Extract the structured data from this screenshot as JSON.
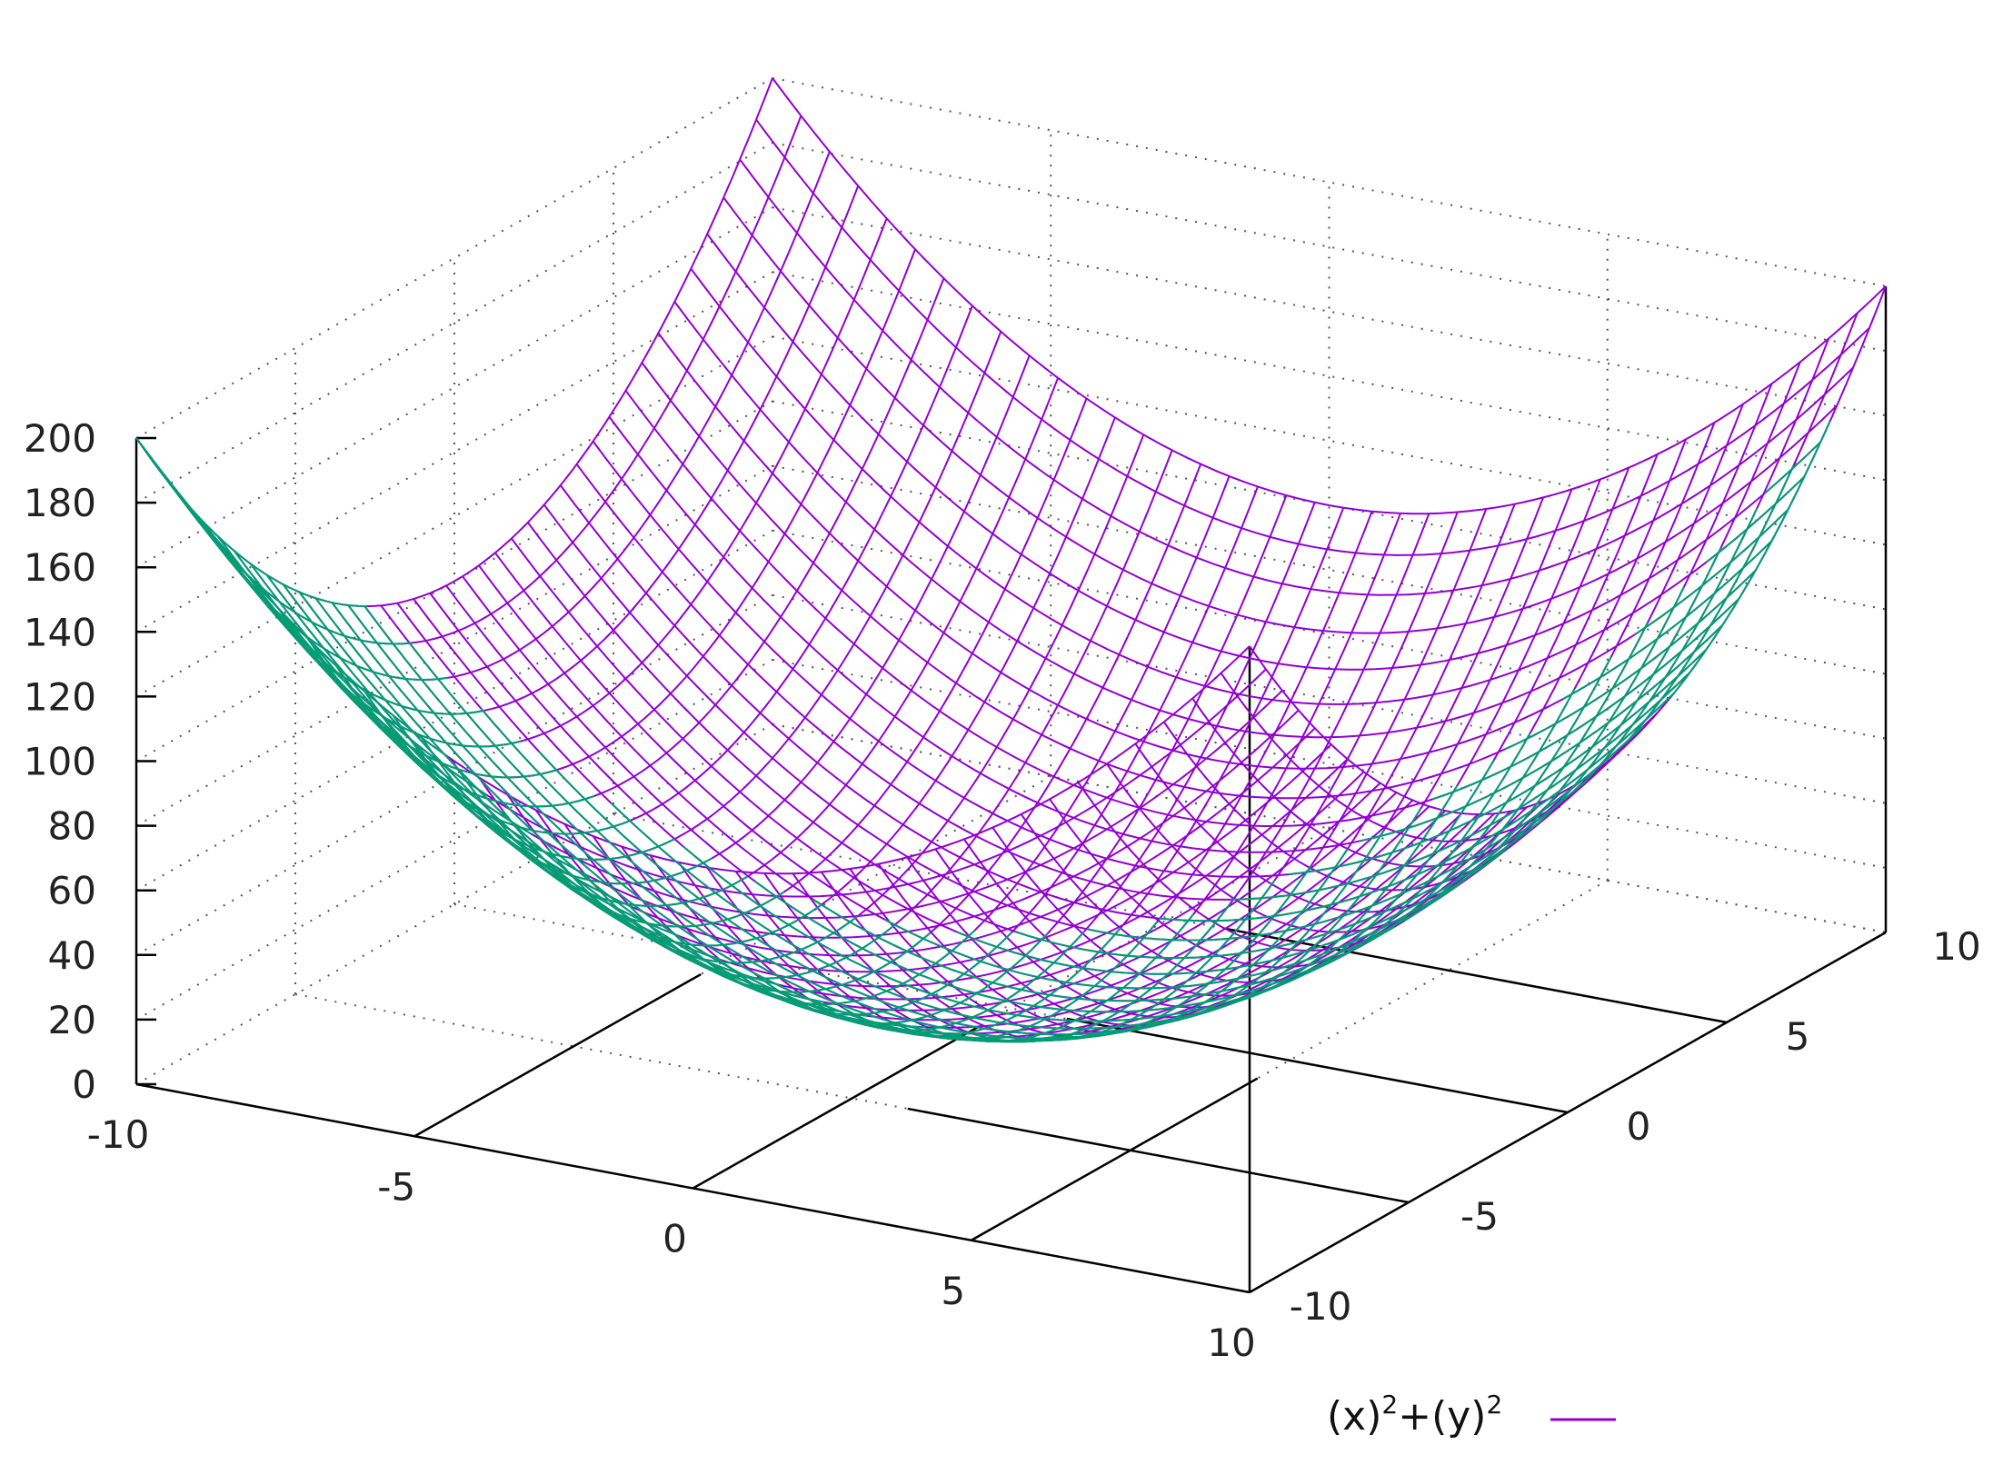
{
  "chart_data": {
    "type": "surface",
    "function": "(x)^2+(y)^2",
    "x_range": [
      -10,
      10
    ],
    "y_range": [
      -10,
      10
    ],
    "zlim": [
      0,
      200
    ],
    "isosamples": 40,
    "x_ticks": [
      "-10",
      "-5",
      "0",
      "5",
      "10"
    ],
    "y_ticks": [
      "-10",
      "-5",
      "0",
      "5",
      "10"
    ],
    "z_ticks": [
      "0",
      "20",
      "40",
      "60",
      "80",
      "100",
      "120",
      "140",
      "160",
      "180",
      "200"
    ],
    "grid": true,
    "legend": {
      "position": "bottom-right",
      "parts": [
        "(x)",
        "2",
        "+(y)",
        "2"
      ]
    },
    "colors": {
      "surface_top": "#9400d3",
      "surface_bottom": "#009e73",
      "axis": "#000000",
      "grid": "#555555"
    }
  }
}
